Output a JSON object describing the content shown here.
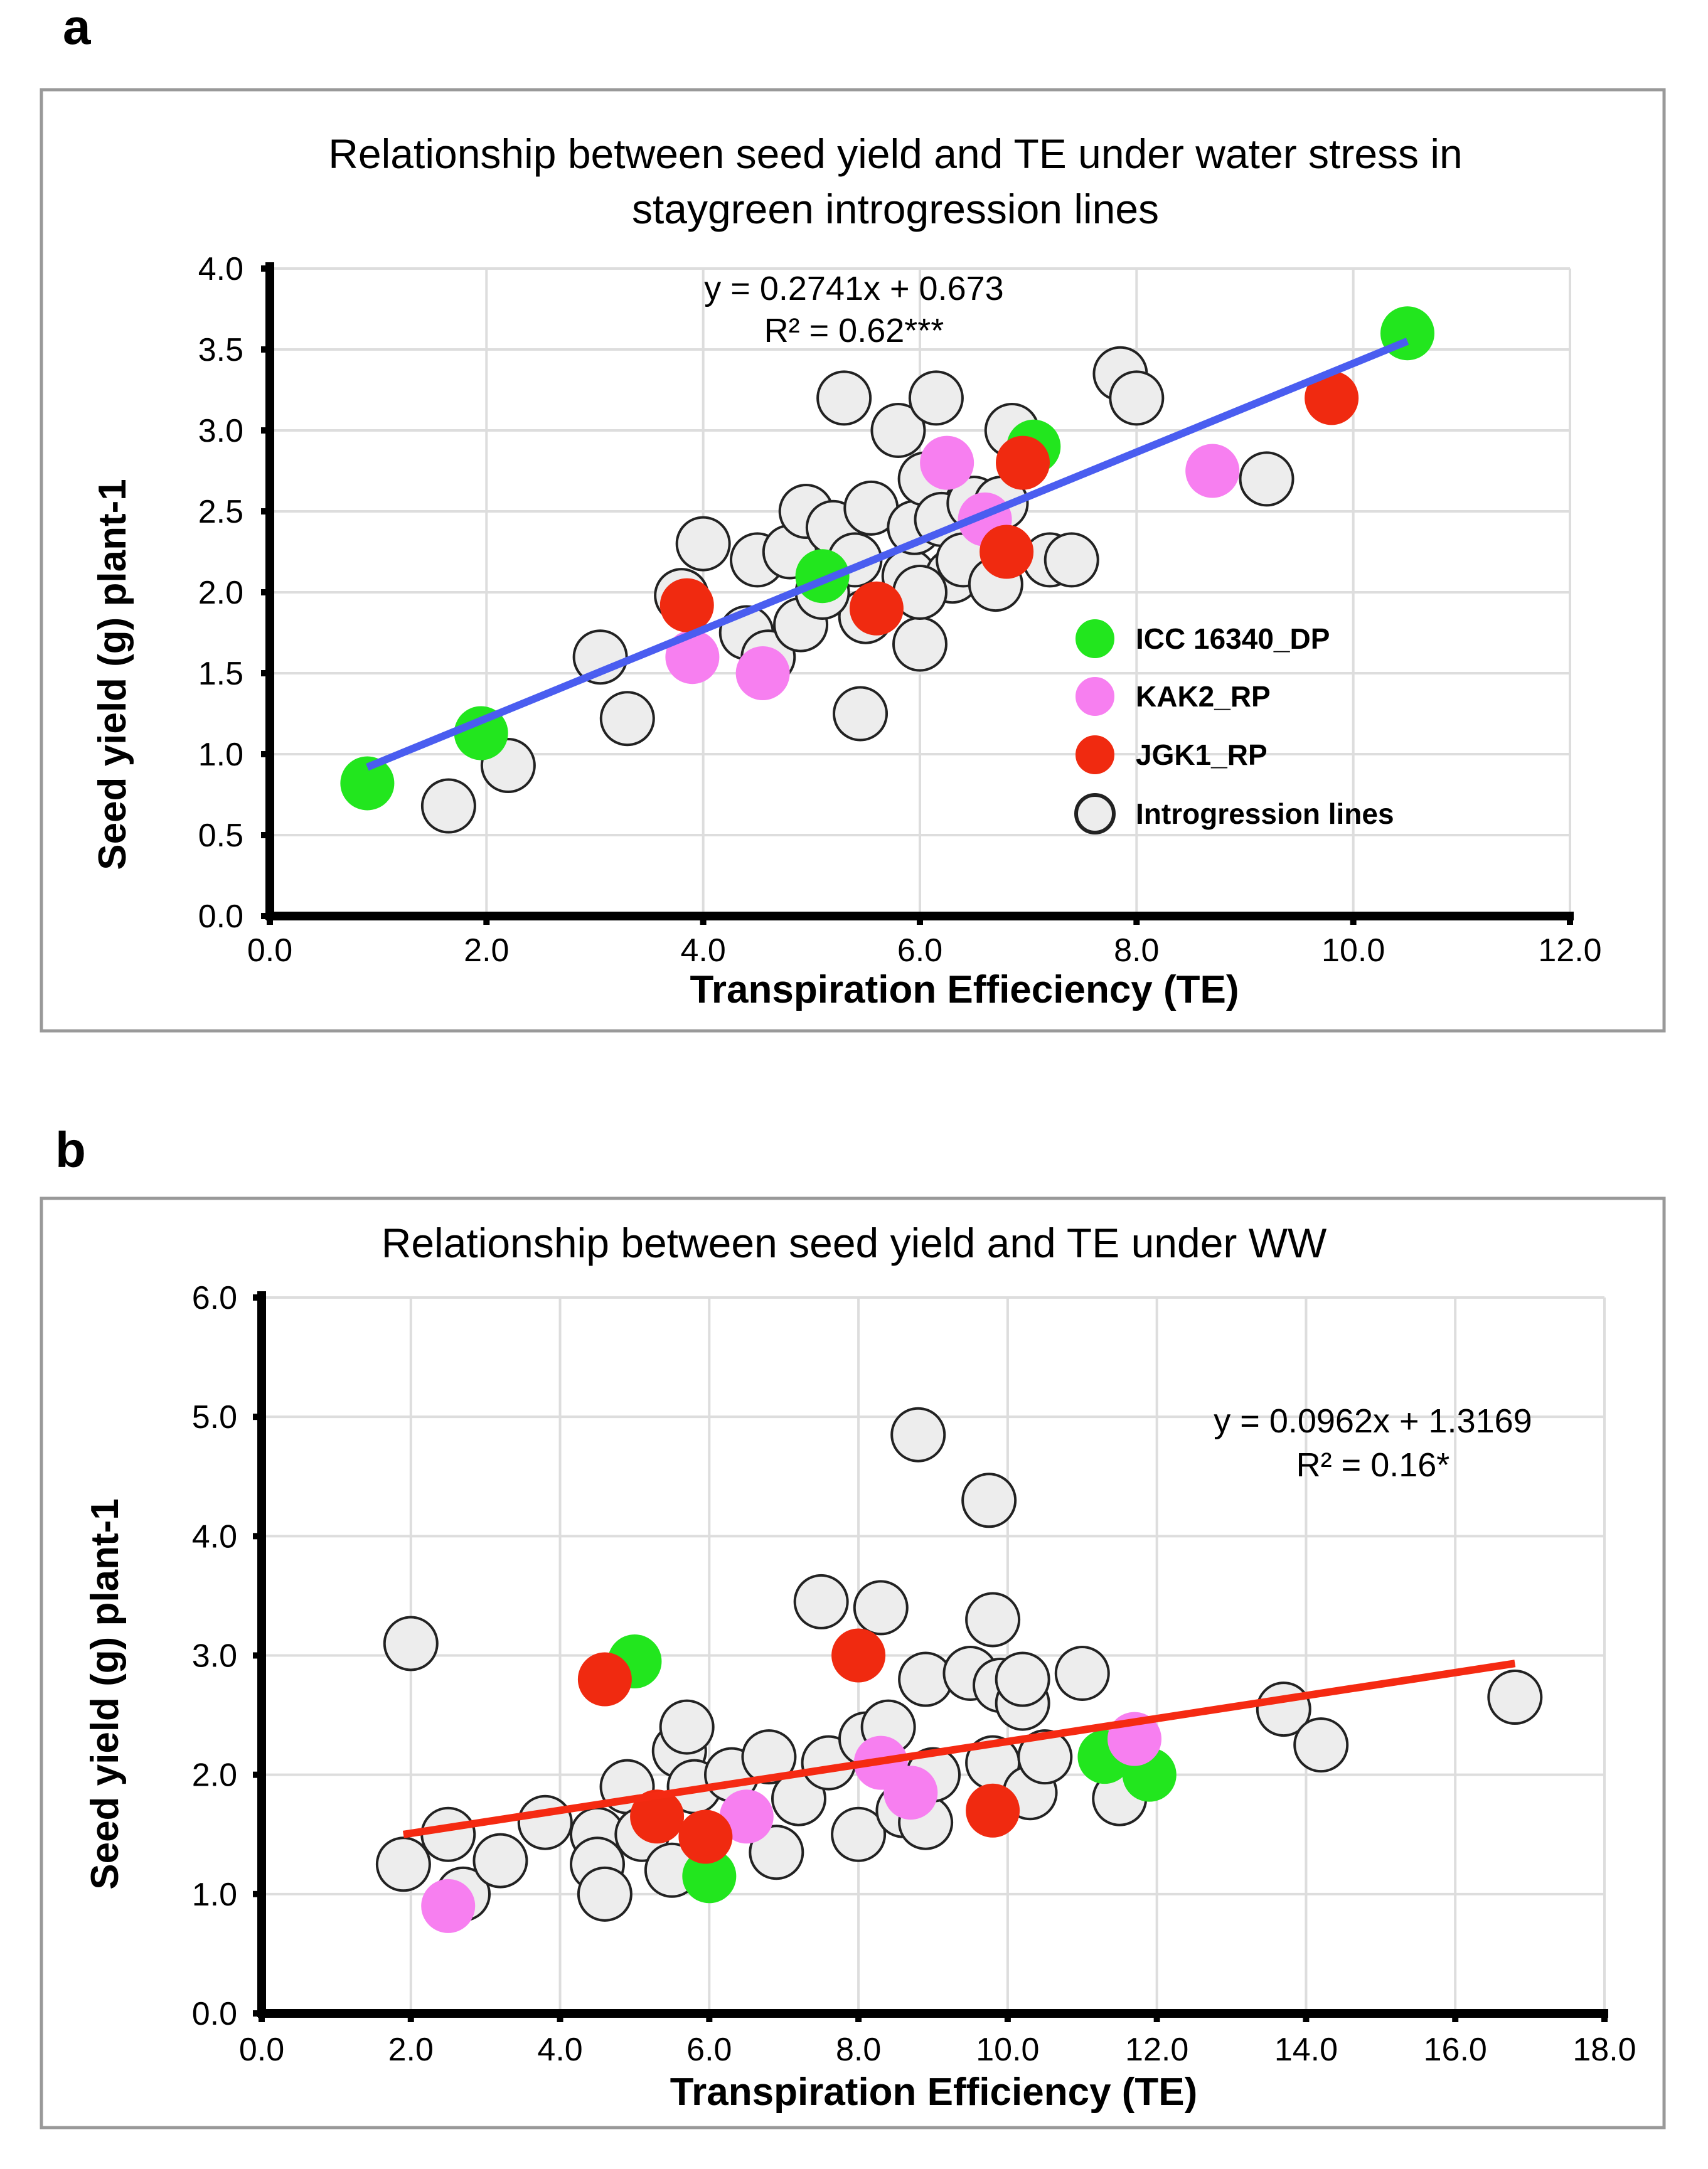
{
  "colors": {
    "green": "#22e61e",
    "pink": "#f77ff0",
    "red": "#f02a10",
    "grey": "#ededed",
    "blue_line": "#4a5df0",
    "red_line": "#f52a12",
    "grid": "#dddddd",
    "frame": "#999999"
  },
  "chart_data": [
    {
      "panel_label": "a",
      "type": "scatter",
      "title": [
        "Relationship between seed yield and TE under water stress in",
        "staygreen introgression lines"
      ],
      "xlabel": "Transpiration Effieciency (TE)",
      "ylabel": "Seed yield (g) plant-1",
      "xlim": [
        0,
        12
      ],
      "ylim": [
        0,
        4
      ],
      "xticks": [
        "0.0",
        "2.0",
        "4.0",
        "6.0",
        "8.0",
        "10.0",
        "12.0"
      ],
      "yticks": [
        "0.0",
        "0.5",
        "1.0",
        "1.5",
        "2.0",
        "2.5",
        "3.0",
        "3.5",
        "4.0"
      ],
      "grid": true,
      "equation": "y = 0.2741x + 0.673",
      "r2": "R² = 0.62***",
      "trendline": {
        "slope": 0.2741,
        "intercept": 0.673,
        "x_range": [
          0.9,
          10.5
        ],
        "color": "blue_line"
      },
      "legend": {
        "placement": "right",
        "entries": [
          {
            "label": "ICC 16340_DP",
            "color": "green"
          },
          {
            "label": "KAK2_RP",
            "color": "pink"
          },
          {
            "label": "JGK1_RP",
            "color": "red"
          },
          {
            "label": "Introgression lines",
            "color": "grey"
          }
        ]
      },
      "series": [
        {
          "name": "Introgression lines",
          "color": "grey",
          "points": [
            [
              1.65,
              0.68
            ],
            [
              2.2,
              0.93
            ],
            [
              3.05,
              1.6
            ],
            [
              3.3,
              1.22
            ],
            [
              3.8,
              1.98
            ],
            [
              4.0,
              2.3
            ],
            [
              4.4,
              1.75
            ],
            [
              4.5,
              2.2
            ],
            [
              4.6,
              1.6
            ],
            [
              4.8,
              2.25
            ],
            [
              4.9,
              1.8
            ],
            [
              4.95,
              2.5
            ],
            [
              5.2,
              2.4
            ],
            [
              5.4,
              2.2
            ],
            [
              5.5,
              1.85
            ],
            [
              5.45,
              1.25
            ],
            [
              5.55,
              2.52
            ],
            [
              5.3,
              3.2
            ],
            [
              5.8,
              3.0
            ],
            [
              5.9,
              2.1
            ],
            [
              5.95,
              2.4
            ],
            [
              6.0,
              1.68
            ],
            [
              6.05,
              2.7
            ],
            [
              6.15,
              3.2
            ],
            [
              6.2,
              2.45
            ],
            [
              6.3,
              2.1
            ],
            [
              6.4,
              2.2
            ],
            [
              6.5,
              2.55
            ],
            [
              6.7,
              2.05
            ],
            [
              6.75,
              2.55
            ],
            [
              6.85,
              3.0
            ],
            [
              7.2,
              2.2
            ],
            [
              7.4,
              2.2
            ],
            [
              7.85,
              3.35
            ],
            [
              8.0,
              3.2
            ],
            [
              9.2,
              2.7
            ],
            [
              6.0,
              2.0
            ],
            [
              5.1,
              2.0
            ]
          ]
        },
        {
          "name": "ICC 16340_DP",
          "color": "green",
          "points": [
            [
              0.9,
              0.82
            ],
            [
              1.95,
              1.13
            ],
            [
              5.1,
              2.1
            ],
            [
              7.05,
              2.9
            ],
            [
              10.5,
              3.6
            ]
          ]
        },
        {
          "name": "KAK2_RP",
          "color": "pink",
          "points": [
            [
              3.9,
              1.6
            ],
            [
              4.55,
              1.5
            ],
            [
              6.25,
              2.8
            ],
            [
              6.6,
              2.45
            ],
            [
              8.7,
              2.75
            ]
          ]
        },
        {
          "name": "JGK1_RP",
          "color": "red",
          "points": [
            [
              3.85,
              1.92
            ],
            [
              5.6,
              1.9
            ],
            [
              6.95,
              2.8
            ],
            [
              6.8,
              2.25
            ],
            [
              9.8,
              3.2
            ]
          ]
        }
      ]
    },
    {
      "panel_label": "b",
      "type": "scatter",
      "title": [
        "Relationship between seed yield and TE under WW"
      ],
      "xlabel": "Transpiration Efficiency (TE)",
      "ylabel": "Seed yield (g) plant-1",
      "xlim": [
        0,
        18
      ],
      "ylim": [
        0,
        6
      ],
      "xticks": [
        "0.0",
        "2.0",
        "4.0",
        "6.0",
        "8.0",
        "10.0",
        "12.0",
        "14.0",
        "16.0",
        "18.0"
      ],
      "yticks": [
        "0.0",
        "1.0",
        "2.0",
        "3.0",
        "4.0",
        "5.0",
        "6.0"
      ],
      "grid": true,
      "equation": "y = 0.0962x + 1.3169",
      "r2": "R² = 0.16*",
      "trendline": {
        "slope": 0.0962,
        "intercept": 1.3169,
        "x_range": [
          1.9,
          16.8
        ],
        "color": "red_line"
      },
      "series": [
        {
          "name": "Introgression lines",
          "color": "grey",
          "points": [
            [
              2.0,
              3.1
            ],
            [
              1.9,
              1.25
            ],
            [
              2.5,
              1.5
            ],
            [
              2.7,
              1.0
            ],
            [
              3.2,
              1.28
            ],
            [
              3.8,
              1.6
            ],
            [
              4.5,
              1.5
            ],
            [
              4.5,
              1.25
            ],
            [
              4.6,
              1.0
            ],
            [
              4.9,
              1.9
            ],
            [
              5.1,
              1.5
            ],
            [
              5.5,
              1.2
            ],
            [
              5.6,
              2.2
            ],
            [
              5.7,
              2.4
            ],
            [
              5.8,
              1.9
            ],
            [
              6.3,
              2.0
            ],
            [
              6.8,
              2.15
            ],
            [
              6.9,
              1.35
            ],
            [
              7.2,
              1.8
            ],
            [
              7.5,
              3.45
            ],
            [
              7.6,
              2.1
            ],
            [
              8.0,
              1.5
            ],
            [
              8.1,
              2.3
            ],
            [
              8.3,
              3.4
            ],
            [
              8.4,
              2.4
            ],
            [
              8.6,
              1.7
            ],
            [
              8.8,
              4.85
            ],
            [
              8.9,
              1.6
            ],
            [
              9.0,
              2.0
            ],
            [
              8.9,
              2.8
            ],
            [
              9.5,
              2.85
            ],
            [
              9.75,
              4.3
            ],
            [
              9.8,
              3.3
            ],
            [
              9.8,
              2.1
            ],
            [
              9.9,
              2.75
            ],
            [
              10.2,
              2.6
            ],
            [
              10.3,
              1.85
            ],
            [
              10.5,
              2.15
            ],
            [
              10.2,
              2.8
            ],
            [
              11.0,
              2.85
            ],
            [
              11.5,
              1.8
            ],
            [
              13.7,
              2.55
            ],
            [
              14.2,
              2.25
            ],
            [
              16.8,
              2.65
            ]
          ]
        },
        {
          "name": "ICC 16340_DP",
          "color": "green",
          "points": [
            [
              5.0,
              2.95
            ],
            [
              6.0,
              1.15
            ],
            [
              11.3,
              2.15
            ],
            [
              11.9,
              2.0
            ]
          ]
        },
        {
          "name": "KAK2_RP",
          "color": "pink",
          "points": [
            [
              2.5,
              0.9
            ],
            [
              6.5,
              1.65
            ],
            [
              8.3,
              2.1
            ],
            [
              8.7,
              1.85
            ],
            [
              11.7,
              2.3
            ]
          ]
        },
        {
          "name": "JGK1_RP",
          "color": "red",
          "points": [
            [
              4.6,
              2.8
            ],
            [
              5.3,
              1.65
            ],
            [
              5.95,
              1.48
            ],
            [
              8.0,
              3.0
            ],
            [
              9.8,
              1.7
            ]
          ]
        }
      ]
    }
  ]
}
